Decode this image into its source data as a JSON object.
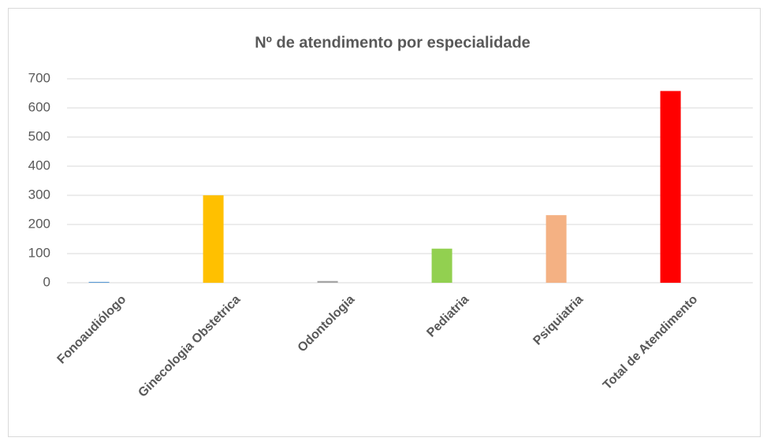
{
  "chart_data": {
    "type": "bar",
    "title": "Nº de atendimento por especialidade",
    "categories": [
      "Fonoaudiólogo",
      "Ginecologia Obstetrica",
      "Odontologia",
      "Pediatria",
      "Psiquiatria",
      "Total de Atendimento"
    ],
    "values": [
      3,
      300,
      6,
      117,
      232,
      658
    ],
    "colors": [
      "#5b9bd5",
      "#ffc000",
      "#a5a5a5",
      "#92d050",
      "#f4b183",
      "#ff0000"
    ],
    "ylim": [
      0,
      700
    ],
    "yticks": [
      0,
      100,
      200,
      300,
      400,
      500,
      600,
      700
    ],
    "grid": true
  }
}
